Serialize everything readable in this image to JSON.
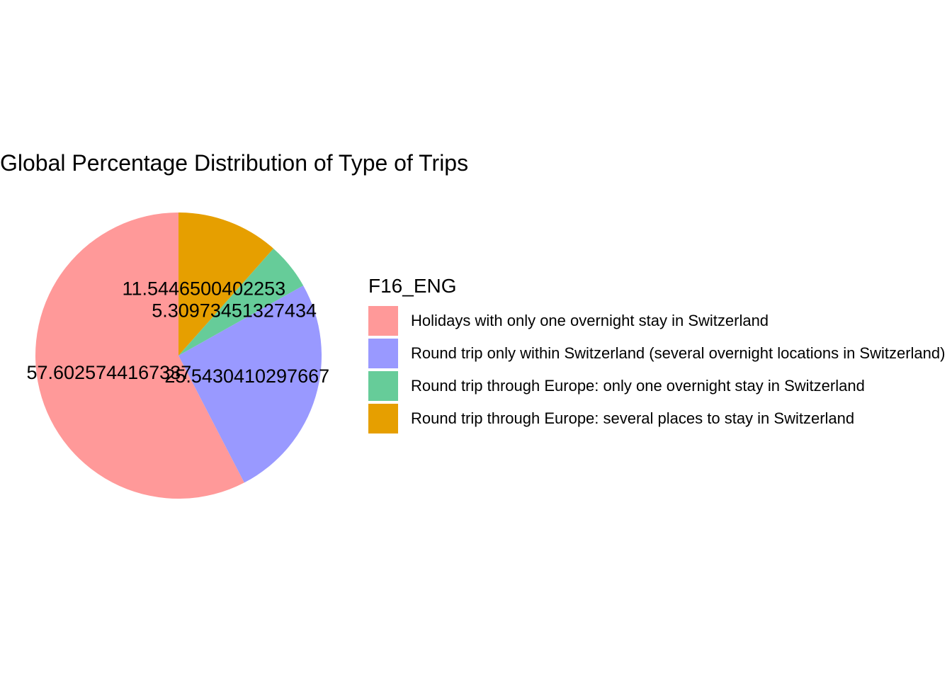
{
  "chart_data": {
    "type": "pie",
    "title": "Global Percentage Distribution of Type of Trips",
    "legend_title": "F16_ENG",
    "legend_position": "right",
    "slices": [
      {
        "label": "Holidays with only one overnight stay in Switzerland",
        "value": 57.6025744167337,
        "display": "57.6025744167337",
        "color": "#ff9999"
      },
      {
        "label": "Round trip only within Switzerland (several overnight locations in Switzerland)",
        "value": 25.5430410297667,
        "display": "25.5430410297667",
        "color": "#9999ff"
      },
      {
        "label": "Round trip through Europe: only one overnight stay in Switzerland",
        "value": 5.30973451327434,
        "display": "5.30973451327434",
        "color": "#66cc99"
      },
      {
        "label": "Round trip through Europe: several places to stay in Switzerland",
        "value": 11.5446500402253,
        "display": "11.5446500402253",
        "color": "#e69f00"
      }
    ]
  }
}
